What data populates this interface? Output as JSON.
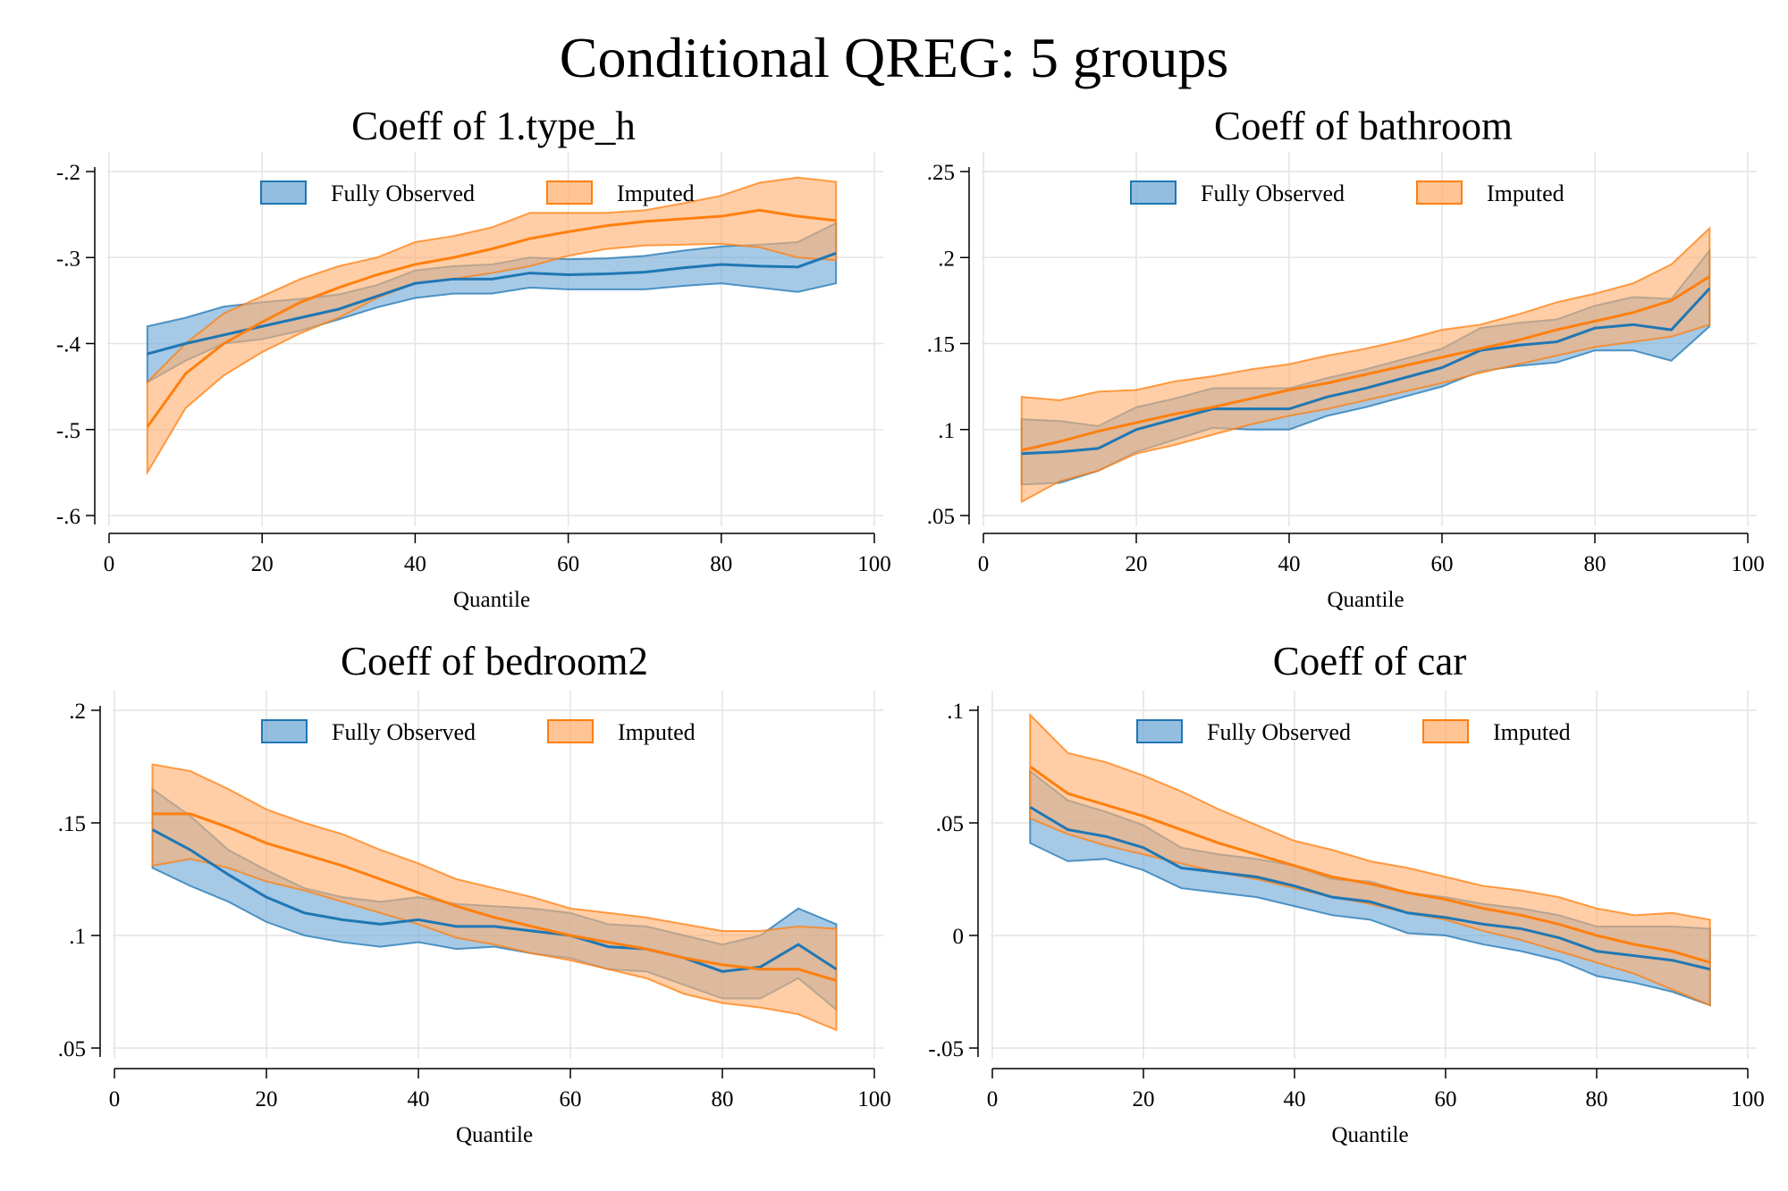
{
  "figure": {
    "title": "Conditional QREG: 5 groups"
  },
  "colors": {
    "observed_line": "#1f77b4",
    "observed_fill": "#6fa8d6",
    "imputed_line": "#ff7f0e",
    "imputed_fill": "#ffb070",
    "grid": "#e4e4e4",
    "axis": "#000000"
  },
  "chart_data": [
    {
      "type": "area",
      "title": "Coeff of 1.type_h",
      "xlabel": "Quantile",
      "ylabel": "",
      "xlim": [
        0,
        100
      ],
      "ylim": [
        -0.6,
        -0.2
      ],
      "xticks": [
        0,
        20,
        40,
        60,
        80,
        100
      ],
      "yticks": [
        -0.6,
        -0.5,
        -0.4,
        -0.3,
        -0.2
      ],
      "ytick_labels": [
        "-.6",
        "-.5",
        "-.4",
        "-.3",
        "-.2"
      ],
      "grid": true,
      "legend": {
        "position": "top-center",
        "entries": [
          "Fully Observed",
          "Imputed"
        ]
      },
      "x": [
        5,
        10,
        15,
        20,
        25,
        30,
        35,
        40,
        45,
        50,
        55,
        60,
        65,
        70,
        75,
        80,
        85,
        90,
        95
      ],
      "series": [
        {
          "name": "Fully Observed",
          "values": [
            -0.412,
            -0.4,
            -0.39,
            -0.38,
            -0.37,
            -0.36,
            -0.345,
            -0.33,
            -0.325,
            -0.325,
            -0.318,
            -0.32,
            -0.319,
            -0.317,
            -0.312,
            -0.308,
            -0.31,
            -0.311,
            -0.295
          ],
          "lower": [
            -0.445,
            -0.42,
            -0.4,
            -0.395,
            -0.385,
            -0.372,
            -0.358,
            -0.347,
            -0.342,
            -0.342,
            -0.335,
            -0.337,
            -0.337,
            -0.337,
            -0.333,
            -0.33,
            -0.335,
            -0.34,
            -0.33
          ],
          "upper": [
            -0.38,
            -0.37,
            -0.357,
            -0.352,
            -0.348,
            -0.343,
            -0.332,
            -0.315,
            -0.31,
            -0.308,
            -0.3,
            -0.302,
            -0.301,
            -0.298,
            -0.292,
            -0.287,
            -0.285,
            -0.282,
            -0.26
          ]
        },
        {
          "name": "Imputed",
          "values": [
            -0.497,
            -0.435,
            -0.4,
            -0.375,
            -0.352,
            -0.335,
            -0.32,
            -0.308,
            -0.3,
            -0.29,
            -0.278,
            -0.27,
            -0.263,
            -0.258,
            -0.255,
            -0.252,
            -0.245,
            -0.252,
            -0.257
          ],
          "lower": [
            -0.55,
            -0.475,
            -0.437,
            -0.41,
            -0.388,
            -0.37,
            -0.347,
            -0.33,
            -0.325,
            -0.318,
            -0.31,
            -0.298,
            -0.29,
            -0.286,
            -0.285,
            -0.284,
            -0.288,
            -0.3,
            -0.303
          ],
          "upper": [
            -0.445,
            -0.4,
            -0.365,
            -0.345,
            -0.325,
            -0.31,
            -0.3,
            -0.282,
            -0.275,
            -0.265,
            -0.248,
            -0.248,
            -0.248,
            -0.245,
            -0.237,
            -0.228,
            -0.213,
            -0.207,
            -0.212
          ]
        }
      ]
    },
    {
      "type": "area",
      "title": "Coeff of bathroom",
      "xlabel": "Quantile",
      "ylabel": "",
      "xlim": [
        0,
        100
      ],
      "ylim": [
        0.05,
        0.25
      ],
      "xticks": [
        0,
        20,
        40,
        60,
        80,
        100
      ],
      "yticks": [
        0.05,
        0.1,
        0.15,
        0.2,
        0.25
      ],
      "ytick_labels": [
        ".05",
        ".1",
        ".15",
        ".2",
        ".25"
      ],
      "grid": true,
      "legend": {
        "position": "top-center",
        "entries": [
          "Fully Observed",
          "Imputed"
        ]
      },
      "x": [
        5,
        10,
        15,
        20,
        25,
        30,
        35,
        40,
        45,
        50,
        55,
        60,
        65,
        70,
        75,
        80,
        85,
        90,
        95
      ],
      "series": [
        {
          "name": "Fully Observed",
          "values": [
            0.086,
            0.087,
            0.089,
            0.1,
            0.106,
            0.112,
            0.112,
            0.112,
            0.119,
            0.124,
            0.13,
            0.136,
            0.146,
            0.149,
            0.151,
            0.159,
            0.161,
            0.158,
            0.182
          ],
          "lower": [
            0.068,
            0.069,
            0.076,
            0.087,
            0.094,
            0.101,
            0.1,
            0.1,
            0.108,
            0.113,
            0.119,
            0.125,
            0.134,
            0.137,
            0.139,
            0.146,
            0.146,
            0.14,
            0.16
          ],
          "upper": [
            0.106,
            0.105,
            0.102,
            0.113,
            0.118,
            0.124,
            0.124,
            0.124,
            0.13,
            0.135,
            0.141,
            0.147,
            0.159,
            0.162,
            0.164,
            0.172,
            0.177,
            0.176,
            0.204
          ]
        },
        {
          "name": "Imputed",
          "values": [
            0.088,
            0.093,
            0.099,
            0.104,
            0.109,
            0.113,
            0.118,
            0.123,
            0.127,
            0.132,
            0.137,
            0.142,
            0.147,
            0.152,
            0.158,
            0.163,
            0.168,
            0.175,
            0.189
          ],
          "lower": [
            0.058,
            0.07,
            0.076,
            0.086,
            0.091,
            0.097,
            0.103,
            0.108,
            0.112,
            0.117,
            0.122,
            0.127,
            0.133,
            0.138,
            0.143,
            0.148,
            0.151,
            0.154,
            0.161
          ],
          "upper": [
            0.119,
            0.117,
            0.122,
            0.123,
            0.128,
            0.131,
            0.135,
            0.138,
            0.143,
            0.147,
            0.152,
            0.158,
            0.161,
            0.167,
            0.174,
            0.179,
            0.185,
            0.196,
            0.217
          ]
        }
      ]
    },
    {
      "type": "area",
      "title": "Coeff of bedroom2",
      "xlabel": "Quantile",
      "ylabel": "",
      "xlim": [
        0,
        100
      ],
      "ylim": [
        0.05,
        0.2
      ],
      "xticks": [
        0,
        20,
        40,
        60,
        80,
        100
      ],
      "yticks": [
        0.05,
        0.1,
        0.15,
        0.2
      ],
      "ytick_labels": [
        ".05",
        ".1",
        ".15",
        ".2"
      ],
      "grid": true,
      "legend": {
        "position": "top-center",
        "entries": [
          "Fully Observed",
          "Imputed"
        ]
      },
      "x": [
        5,
        10,
        15,
        20,
        25,
        30,
        35,
        40,
        45,
        50,
        55,
        60,
        65,
        70,
        75,
        80,
        85,
        90,
        95
      ],
      "series": [
        {
          "name": "Fully Observed",
          "values": [
            0.147,
            0.138,
            0.127,
            0.117,
            0.11,
            0.107,
            0.105,
            0.107,
            0.104,
            0.104,
            0.102,
            0.1,
            0.095,
            0.094,
            0.09,
            0.084,
            0.086,
            0.096,
            0.085
          ],
          "lower": [
            0.13,
            0.122,
            0.115,
            0.106,
            0.1,
            0.097,
            0.095,
            0.097,
            0.094,
            0.095,
            0.092,
            0.09,
            0.085,
            0.084,
            0.078,
            0.072,
            0.072,
            0.081,
            0.067
          ],
          "upper": [
            0.165,
            0.153,
            0.138,
            0.129,
            0.121,
            0.117,
            0.115,
            0.117,
            0.114,
            0.113,
            0.112,
            0.11,
            0.105,
            0.104,
            0.1,
            0.096,
            0.1,
            0.112,
            0.105
          ]
        },
        {
          "name": "Imputed",
          "values": [
            0.154,
            0.154,
            0.148,
            0.141,
            0.136,
            0.131,
            0.125,
            0.119,
            0.113,
            0.108,
            0.104,
            0.1,
            0.097,
            0.094,
            0.09,
            0.087,
            0.085,
            0.085,
            0.08
          ],
          "lower": [
            0.131,
            0.134,
            0.13,
            0.124,
            0.12,
            0.115,
            0.11,
            0.105,
            0.099,
            0.096,
            0.092,
            0.089,
            0.085,
            0.081,
            0.074,
            0.07,
            0.068,
            0.065,
            0.058
          ],
          "upper": [
            0.176,
            0.173,
            0.165,
            0.156,
            0.15,
            0.145,
            0.138,
            0.132,
            0.125,
            0.121,
            0.117,
            0.112,
            0.11,
            0.108,
            0.105,
            0.102,
            0.102,
            0.104,
            0.103
          ]
        }
      ]
    },
    {
      "type": "area",
      "title": "Coeff of car",
      "xlabel": "Quantile",
      "ylabel": "",
      "xlim": [
        0,
        100
      ],
      "ylim": [
        -0.05,
        0.1
      ],
      "xticks": [
        0,
        20,
        40,
        60,
        80,
        100
      ],
      "yticks": [
        -0.05,
        0,
        0.05,
        0.1
      ],
      "ytick_labels": [
        "-.05",
        "0",
        ".05",
        ".1"
      ],
      "grid": true,
      "legend": {
        "position": "top-center",
        "entries": [
          "Fully Observed",
          "Imputed"
        ]
      },
      "x": [
        5,
        10,
        15,
        20,
        25,
        30,
        35,
        40,
        45,
        50,
        55,
        60,
        65,
        70,
        75,
        80,
        85,
        90,
        95
      ],
      "series": [
        {
          "name": "Fully Observed",
          "values": [
            0.057,
            0.047,
            0.044,
            0.039,
            0.03,
            0.028,
            0.026,
            0.022,
            0.017,
            0.015,
            0.01,
            0.008,
            0.005,
            0.003,
            -0.001,
            -0.007,
            -0.009,
            -0.011,
            -0.015
          ],
          "lower": [
            0.041,
            0.033,
            0.034,
            0.029,
            0.021,
            0.019,
            0.017,
            0.013,
            0.009,
            0.007,
            0.001,
            0.0,
            -0.004,
            -0.007,
            -0.011,
            -0.018,
            -0.021,
            -0.025,
            -0.031
          ],
          "upper": [
            0.073,
            0.06,
            0.055,
            0.049,
            0.039,
            0.036,
            0.034,
            0.031,
            0.025,
            0.024,
            0.019,
            0.017,
            0.014,
            0.012,
            0.009,
            0.004,
            0.004,
            0.004,
            0.003
          ]
        },
        {
          "name": "Imputed",
          "values": [
            0.075,
            0.063,
            0.058,
            0.053,
            0.047,
            0.041,
            0.036,
            0.031,
            0.026,
            0.023,
            0.019,
            0.016,
            0.012,
            0.009,
            0.005,
            0.0,
            -0.004,
            -0.007,
            -0.012
          ],
          "lower": [
            0.052,
            0.045,
            0.04,
            0.036,
            0.032,
            0.028,
            0.025,
            0.021,
            0.017,
            0.014,
            0.01,
            0.007,
            0.002,
            -0.002,
            -0.007,
            -0.012,
            -0.017,
            -0.024,
            -0.031
          ],
          "upper": [
            0.098,
            0.081,
            0.077,
            0.071,
            0.064,
            0.056,
            0.049,
            0.042,
            0.038,
            0.033,
            0.03,
            0.026,
            0.022,
            0.02,
            0.017,
            0.012,
            0.009,
            0.01,
            0.007
          ]
        }
      ]
    }
  ]
}
